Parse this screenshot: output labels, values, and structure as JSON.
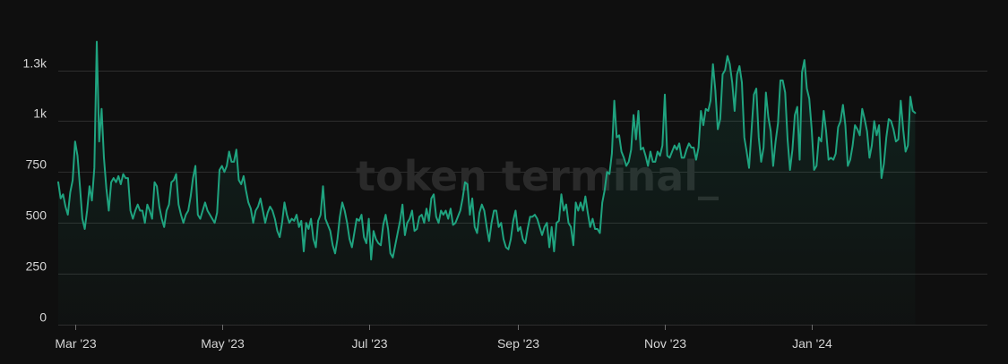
{
  "chart_data": {
    "type": "area",
    "watermark": "token terminal_",
    "ylim": [
      0,
      1400
    ],
    "y_ticks": [
      {
        "value": 0,
        "label": "0"
      },
      {
        "value": 250,
        "label": "250"
      },
      {
        "value": 500,
        "label": "500"
      },
      {
        "value": 750,
        "label": "750"
      },
      {
        "value": 1000,
        "label": "1k"
      },
      {
        "value": 1250,
        "label": "1.3k"
      }
    ],
    "x_range": [
      "2023-02-22",
      "2024-03-14"
    ],
    "x_ticks": [
      {
        "date": "2023-03-01",
        "label": "Mar '23"
      },
      {
        "date": "2023-05-01",
        "label": "May '23"
      },
      {
        "date": "2023-07-01",
        "label": "Jul '23"
      },
      {
        "date": "2023-09-01",
        "label": "Sep '23"
      },
      {
        "date": "2023-11-01",
        "label": "Nov '23"
      },
      {
        "date": "2024-01-01",
        "label": "Jan '24"
      }
    ],
    "grid": true,
    "colors": {
      "line": "#1fa37f",
      "background": "#0f0f0f",
      "grid": "#2e2e2e",
      "text": "#d4d4d4"
    },
    "series": [
      {
        "start_date": "2023-02-22",
        "step_days": 1,
        "values": [
          700,
          620,
          640,
          580,
          540,
          650,
          710,
          900,
          830,
          680,
          520,
          470,
          560,
          680,
          610,
          770,
          1390,
          900,
          1060,
          820,
          670,
          560,
          700,
          720,
          700,
          730,
          690,
          740,
          720,
          720,
          560,
          520,
          560,
          590,
          560,
          560,
          500,
          590,
          560,
          520,
          700,
          680,
          580,
          520,
          480,
          560,
          590,
          700,
          710,
          740,
          590,
          540,
          500,
          540,
          560,
          630,
          720,
          780,
          540,
          520,
          560,
          600,
          560,
          540,
          520,
          500,
          550,
          760,
          780,
          750,
          780,
          850,
          800,
          800,
          860,
          710,
          690,
          730,
          660,
          600,
          570,
          500,
          560,
          580,
          620,
          560,
          500,
          550,
          580,
          560,
          520,
          460,
          430,
          500,
          600,
          540,
          500,
          520,
          510,
          540,
          480,
          510,
          360,
          500,
          470,
          520,
          420,
          380,
          510,
          540,
          680,
          520,
          490,
          460,
          390,
          350,
          420,
          530,
          600,
          560,
          500,
          420,
          380,
          450,
          520,
          510,
          540,
          430,
          400,
          520,
          320,
          460,
          420,
          400,
          390,
          490,
          540,
          470,
          350,
          330,
          390,
          450,
          510,
          590,
          440,
          500,
          520,
          560,
          460,
          470,
          530,
          540,
          500,
          570,
          510,
          620,
          640,
          530,
          500,
          560,
          540,
          560,
          520,
          570,
          490,
          500,
          530,
          560,
          620,
          700,
          690,
          540,
          620,
          480,
          450,
          550,
          590,
          560,
          480,
          410,
          500,
          560,
          560,
          480,
          500,
          420,
          380,
          370,
          420,
          510,
          560,
          460,
          480,
          420,
          400,
          470,
          530,
          530,
          540,
          520,
          480,
          440,
          480,
          500,
          380,
          480,
          360,
          500,
          510,
          640,
          560,
          590,
          500,
          480,
          390,
          600,
          560,
          600,
          560,
          630,
          550,
          480,
          520,
          470,
          470,
          450,
          600,
          660,
          750,
          740,
          840,
          1100,
          920,
          930,
          850,
          820,
          780,
          800,
          860,
          1030,
          910,
          1050,
          860,
          870,
          830,
          780,
          850,
          800,
          800,
          850,
          830,
          880,
          1130,
          830,
          820,
          850,
          880,
          860,
          890,
          820,
          820,
          860,
          890,
          870,
          870,
          810,
          870,
          1050,
          980,
          1060,
          1050,
          1100,
          1280,
          1150,
          960,
          1010,
          1230,
          1250,
          1320,
          1280,
          1190,
          1050,
          1230,
          1270,
          1190,
          920,
          850,
          770,
          950,
          1130,
          1160,
          920,
          800,
          870,
          1140,
          1020,
          950,
          780,
          900,
          990,
          1200,
          1200,
          1140,
          910,
          760,
          860,
          1030,
          1070,
          810,
          1240,
          1300,
          1160,
          1110,
          960,
          760,
          780,
          920,
          900,
          1050,
          950,
          810,
          820,
          810,
          840,
          970,
          1000,
          1080,
          980,
          780,
          810,
          880,
          980,
          960,
          930,
          1060,
          1010,
          950,
          820,
          880,
          1000,
          930,
          980,
          720,
          790,
          920,
          1010,
          1000,
          960,
          900,
          910,
          1100,
          960,
          850,
          880,
          1120,
          1050,
          1040
        ]
      }
    ]
  }
}
